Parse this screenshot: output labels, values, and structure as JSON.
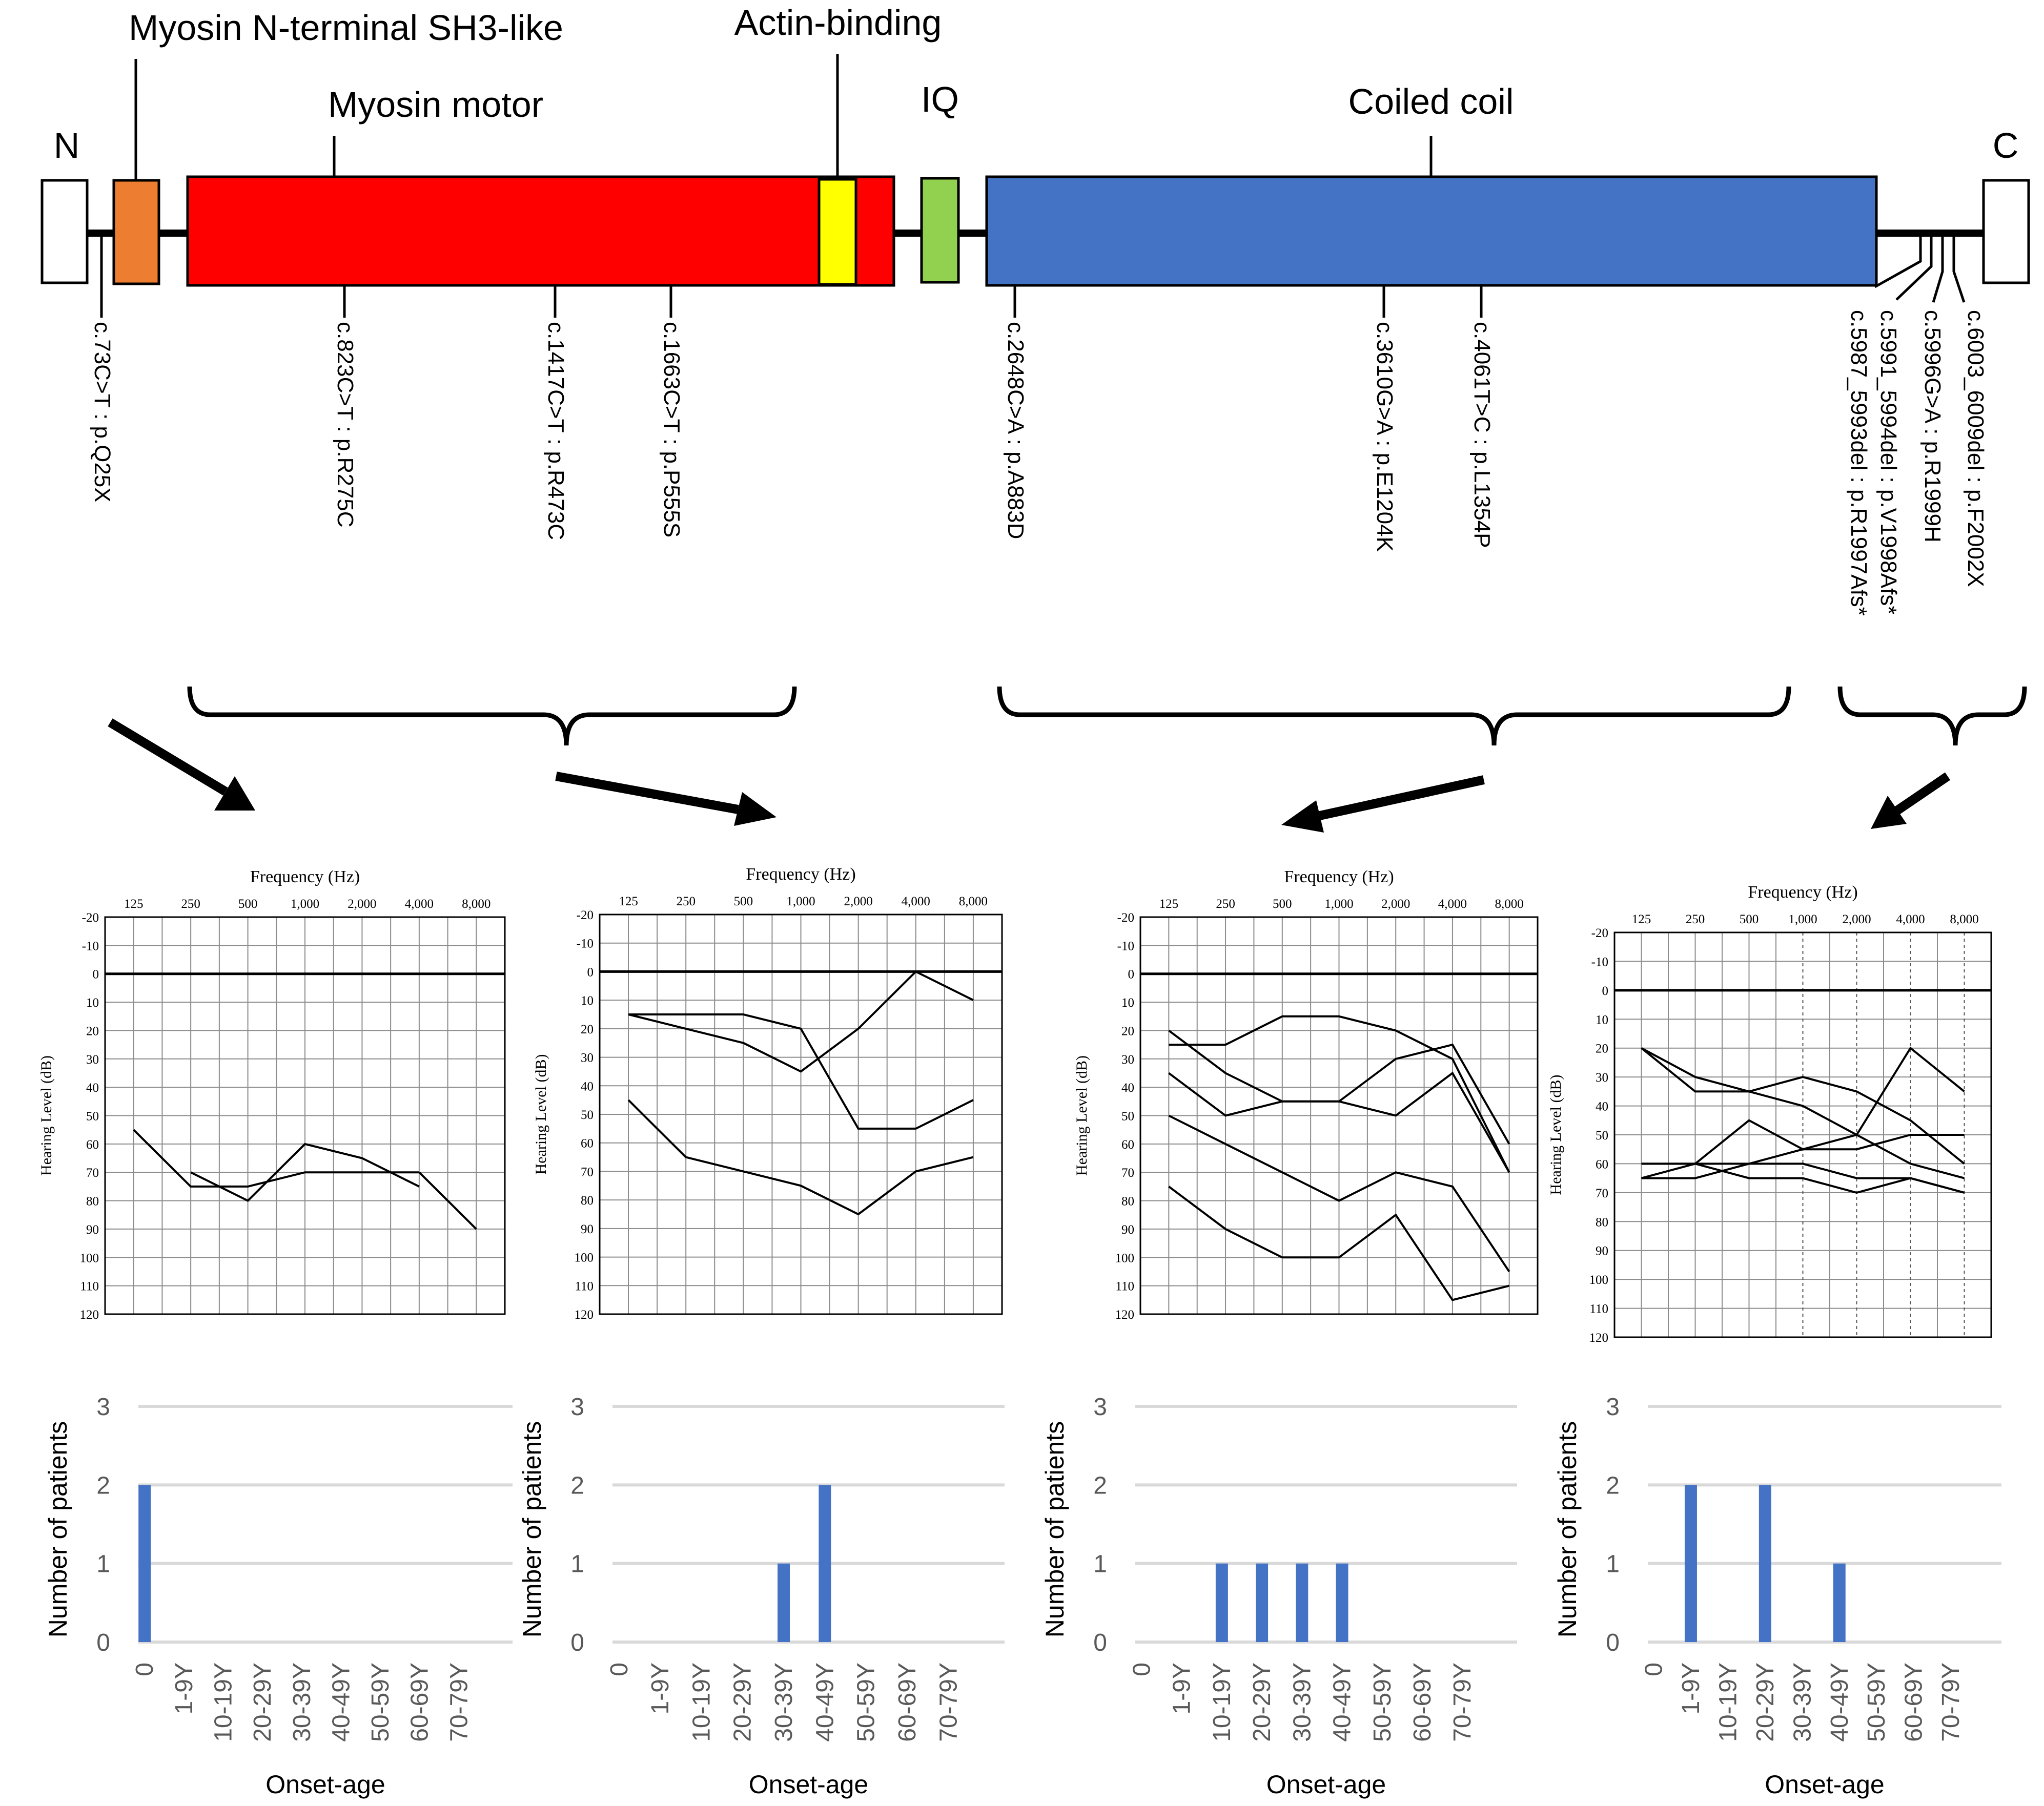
{
  "protein": {
    "n_label": "N",
    "c_label": "C",
    "domains": [
      {
        "name": "Myosin N-terminal SH3-like",
        "color": "#ED7D31"
      },
      {
        "name": "Myosin motor",
        "color": "#FF0000"
      },
      {
        "name": "Actin-binding",
        "color": "#FFFF00"
      },
      {
        "name": "IQ",
        "color": "#92D050"
      },
      {
        "name": "Coiled coil",
        "color": "#4472C4"
      }
    ],
    "mutations": [
      "c.73C>T : p.Q25X",
      "c.823C>T : p.R275C",
      "c.1417C>T : p.R473C",
      "c.1663C>T : p.P555S",
      "c.2648C>A : p.A883D",
      "c.3610G>A : p.E1204K",
      "c.4061T>C : p.L1354P",
      "c.5987_5993del : p.R1997Afs*",
      "c.5991_5994del : p.V1998Afs*",
      "c.5996G>A : p.R1999H",
      "c.6003_6009del : p.F2002X"
    ]
  },
  "audiograms": {
    "x_title": "Frequency (Hz)",
    "y_title": "Hearing Level (dB)",
    "freq_labels": [
      "125",
      "250",
      "500",
      "1,000",
      "2,000",
      "4,000",
      "8,000"
    ],
    "db_labels": [
      "-20",
      "-10",
      "0",
      "10",
      "20",
      "30",
      "40",
      "50",
      "60",
      "70",
      "80",
      "90",
      "100",
      "110",
      "120"
    ],
    "panels": [
      {
        "group": "N-terminal",
        "curves": [
          [
            [
              0,
              55
            ],
            [
              1,
              75
            ],
            [
              2,
              75
            ],
            [
              3,
              70
            ],
            [
              4,
              70
            ],
            [
              5,
              70
            ]
          ],
          [
            [
              1,
              70
            ],
            [
              2,
              80
            ],
            [
              3,
              60
            ],
            [
              4,
              65
            ],
            [
              5,
              75
            ]
          ],
          [
            [
              5,
              70
            ],
            [
              6,
              90
            ]
          ]
        ]
      },
      {
        "group": "Myosin motor",
        "curves": [
          [
            [
              0,
              15
            ],
            [
              1,
              20
            ],
            [
              2,
              25
            ],
            [
              3,
              35
            ],
            [
              4,
              20
            ],
            [
              5,
              0
            ],
            [
              6,
              10
            ]
          ],
          [
            [
              0,
              15
            ],
            [
              2,
              15
            ],
            [
              3,
              20
            ],
            [
              4,
              55
            ],
            [
              5,
              55
            ],
            [
              6,
              45
            ]
          ],
          [
            [
              0,
              45
            ],
            [
              1,
              65
            ],
            [
              2,
              70
            ],
            [
              3,
              75
            ],
            [
              4,
              85
            ],
            [
              5,
              70
            ],
            [
              6,
              65
            ]
          ]
        ]
      },
      {
        "group": "Coiled coil",
        "curves": [
          [
            [
              0,
              25
            ],
            [
              1,
              25
            ],
            [
              2,
              15
            ],
            [
              3,
              15
            ],
            [
              4,
              20
            ],
            [
              5,
              30
            ],
            [
              6,
              70
            ]
          ],
          [
            [
              0,
              20
            ],
            [
              1,
              35
            ],
            [
              2,
              45
            ],
            [
              3,
              45
            ],
            [
              4,
              30
            ],
            [
              5,
              25
            ],
            [
              6,
              60
            ]
          ],
          [
            [
              0,
              35
            ],
            [
              1,
              50
            ],
            [
              2,
              45
            ],
            [
              3,
              45
            ],
            [
              4,
              50
            ],
            [
              5,
              35
            ],
            [
              6,
              70
            ]
          ],
          [
            [
              0,
              50
            ],
            [
              1,
              60
            ],
            [
              2,
              70
            ],
            [
              3,
              80
            ],
            [
              4,
              70
            ],
            [
              5,
              75
            ],
            [
              6,
              105
            ]
          ],
          [
            [
              0,
              75
            ],
            [
              1,
              90
            ],
            [
              2,
              100
            ],
            [
              3,
              100
            ],
            [
              4,
              85
            ],
            [
              5,
              115
            ],
            [
              6,
              110
            ]
          ]
        ]
      },
      {
        "group": "C-terminal",
        "curves": [
          [
            [
              0,
              20
            ],
            [
              1,
              30
            ],
            [
              2,
              35
            ],
            [
              3,
              30
            ],
            [
              4,
              35
            ],
            [
              5,
              45
            ],
            [
              6,
              60
            ]
          ],
          [
            [
              0,
              20
            ],
            [
              1,
              35
            ],
            [
              2,
              35
            ],
            [
              3,
              40
            ],
            [
              4,
              50
            ],
            [
              5,
              20
            ],
            [
              6,
              35
            ]
          ],
          [
            [
              0,
              60
            ],
            [
              1,
              60
            ],
            [
              2,
              45
            ],
            [
              3,
              55
            ],
            [
              4,
              55
            ],
            [
              5,
              50
            ],
            [
              6,
              50
            ]
          ],
          [
            [
              0,
              60
            ],
            [
              1,
              60
            ],
            [
              2,
              60
            ],
            [
              3,
              55
            ],
            [
              4,
              50
            ],
            [
              5,
              60
            ],
            [
              6,
              65
            ]
          ],
          [
            [
              0,
              65
            ],
            [
              1,
              65
            ],
            [
              2,
              60
            ],
            [
              3,
              60
            ],
            [
              4,
              65
            ],
            [
              5,
              65
            ],
            [
              6,
              70
            ]
          ],
          [
            [
              0,
              65
            ],
            [
              1,
              60
            ],
            [
              2,
              65
            ],
            [
              3,
              65
            ],
            [
              4,
              70
            ],
            [
              5,
              65
            ],
            [
              6,
              70
            ]
          ]
        ]
      }
    ]
  },
  "chart_data": [
    {
      "type": "bar",
      "title": "",
      "xlabel": "Onset-age",
      "ylabel": "Number of patients",
      "ylim": [
        0,
        3
      ],
      "y_ticks": [
        "0",
        "1",
        "2",
        "3"
      ],
      "categories": [
        "0",
        "1-9Y",
        "10-19Y",
        "20-29Y",
        "30-39Y",
        "40-49Y",
        "50-59Y",
        "60-69Y",
        "70-79Y"
      ],
      "values": [
        2,
        0,
        0,
        0,
        0,
        0,
        0,
        0,
        0
      ],
      "color": "#4472C4"
    },
    {
      "type": "bar",
      "title": "",
      "xlabel": "Onset-age",
      "ylabel": "Number of patients",
      "ylim": [
        0,
        3
      ],
      "y_ticks": [
        "0",
        "1",
        "2",
        "3"
      ],
      "categories": [
        "0",
        "1-9Y",
        "10-19Y",
        "20-29Y",
        "30-39Y",
        "40-49Y",
        "50-59Y",
        "60-69Y",
        "70-79Y"
      ],
      "values": [
        0,
        0,
        0,
        0,
        1,
        2,
        0,
        0,
        0
      ],
      "color": "#4472C4"
    },
    {
      "type": "bar",
      "title": "",
      "xlabel": "Onset-age",
      "ylabel": "Number of patients",
      "ylim": [
        0,
        3
      ],
      "y_ticks": [
        "0",
        "1",
        "2",
        "3"
      ],
      "categories": [
        "0",
        "1-9Y",
        "10-19Y",
        "20-29Y",
        "30-39Y",
        "40-49Y",
        "50-59Y",
        "60-69Y",
        "70-79Y"
      ],
      "values": [
        0,
        0,
        1,
        1,
        1,
        1,
        0,
        0,
        0
      ],
      "color": "#4472C4"
    },
    {
      "type": "bar",
      "title": "",
      "xlabel": "Onset-age",
      "ylabel": "Number of patients",
      "ylim": [
        0,
        3
      ],
      "y_ticks": [
        "0",
        "1",
        "2",
        "3"
      ],
      "categories": [
        "0",
        "1-9Y",
        "10-19Y",
        "20-29Y",
        "30-39Y",
        "40-49Y",
        "50-59Y",
        "60-69Y",
        "70-79Y"
      ],
      "values": [
        0,
        2,
        0,
        2,
        0,
        1,
        0,
        0,
        0
      ],
      "color": "#4472C4"
    }
  ]
}
